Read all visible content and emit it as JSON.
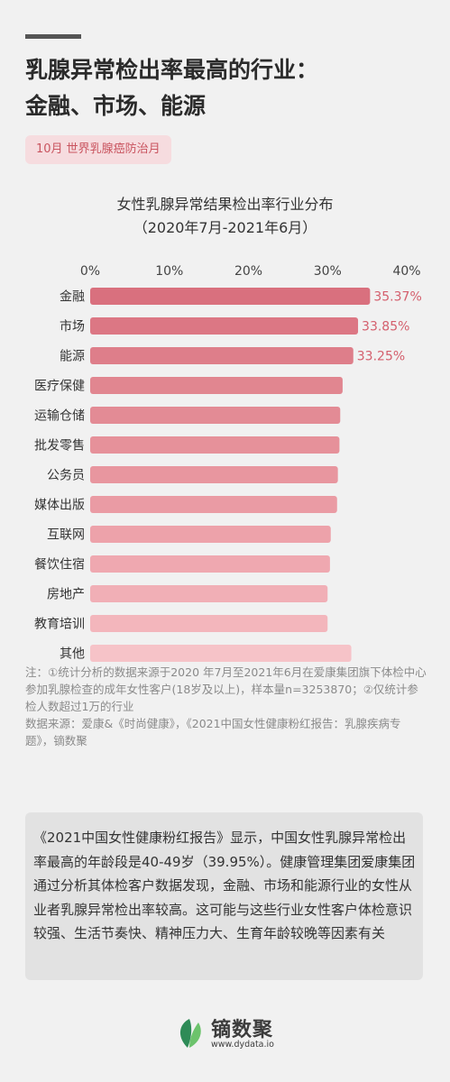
{
  "headline": {
    "line1": "乳腺异常检出率最高的行业：",
    "line2": "金融、市场、能源"
  },
  "tag": "10月 世界乳腺癌防治月",
  "chart_data": {
    "type": "bar",
    "orientation": "horizontal",
    "title": "女性乳腺异常结果检出率行业分布",
    "subtitle": "（2020年7月-2021年6月）",
    "xlim": [
      0,
      40
    ],
    "x_ticks": [
      "0%",
      "10%",
      "20%",
      "30%",
      "40%"
    ],
    "categories": [
      "金融",
      "市场",
      "能源",
      "医疗保健",
      "运输仓储",
      "批发零售",
      "公务员",
      "媒体出版",
      "互联网",
      "餐饮住宿",
      "房地产",
      "教育培训",
      "其他"
    ],
    "values": [
      35.37,
      33.85,
      33.25,
      31.9,
      31.6,
      31.5,
      31.3,
      31.2,
      30.4,
      30.3,
      30.0,
      30.0,
      33.0
    ],
    "data_labels": [
      "35.37%",
      "33.85%",
      "33.25%",
      "",
      "",
      "",
      "",
      "",
      "",
      "",
      "",
      "",
      ""
    ],
    "colors": [
      "#d9707e",
      "#dc7784",
      "#de7e8a",
      "#e18690",
      "#e38b95",
      "#e6919a",
      "#e8969f",
      "#ea9ba4",
      "#eda2aa",
      "#efa8b0",
      "#f1afb6",
      "#f3b6bc",
      "#f6c3c8"
    ],
    "label_color": "#d45f6d",
    "grid": false
  },
  "notes": {
    "line1": "注：①统计分析的数据来源于2020 年7月至2021年6月在爱康集团旗下体检中心参加乳腺检查的成年女性客户(18岁及以上)，样本量n=3253870；②仅统计参检人数超过1万的行业",
    "line2": "数据来源：爱康&《时尚健康》，《2021中国女性健康粉红报告：乳腺疾病专题》，镝数聚"
  },
  "summary": "《2021中国女性健康粉红报告》显示，中国女性乳腺异常检出率最高的年龄段是40-49岁（39.95%）。健康管理集团爱康集团通过分析其体检客户数据发现，金融、市场和能源行业的女性从业者乳腺异常检出率较高。这可能与这些行业女性客户体检意识较强、生活节奏快、精神压力大、生育年龄较晚等因素有关",
  "logo": {
    "name": "镝数聚",
    "url": "www.dydata.io",
    "icon": "leaf-logo-icon",
    "colors": [
      "#2e8b57",
      "#6cc36c"
    ]
  }
}
